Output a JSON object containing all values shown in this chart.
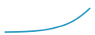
{
  "line_color": "#2899c4",
  "background_color": "#ffffff",
  "y_values": [
    1,
    1.1,
    1.2,
    1.3,
    1.5,
    1.7,
    2.0,
    2.3,
    2.7,
    3.2,
    3.8,
    4.6,
    5.6,
    6.8,
    8.2,
    9.8,
    11.5,
    13.5,
    16.0,
    19.0,
    22.5,
    26.5,
    31.0,
    36.0,
    41.5
  ],
  "linewidth": 1.4,
  "figsize": [
    1.2,
    0.45
  ],
  "dpi": 100
}
